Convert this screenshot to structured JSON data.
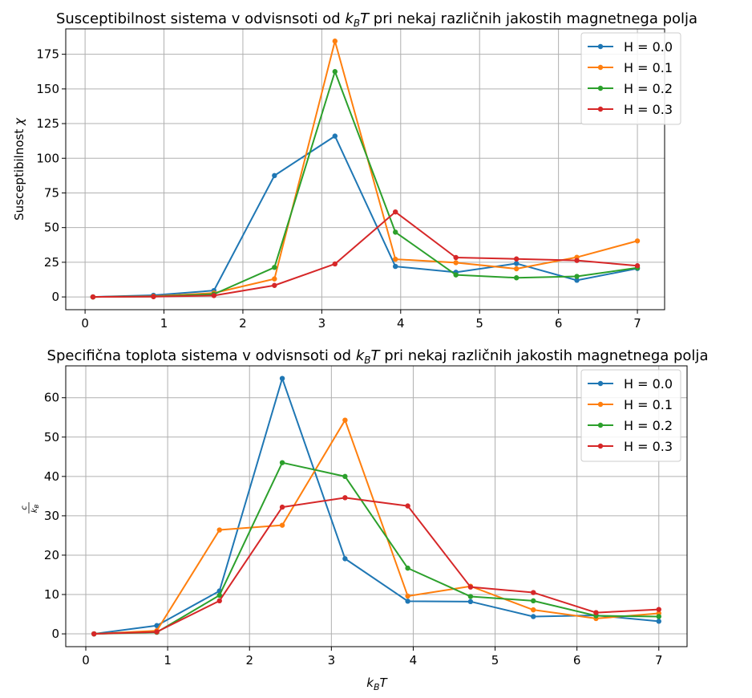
{
  "chart_data": [
    {
      "type": "line",
      "title": "Susceptibilnost sistema v odvisnsoti od k_BT pri nekaj različnih jakostih magnetnega polja",
      "title_parts": [
        "Susceptibilnost sistema v odvisnsoti od ",
        "k",
        "B",
        "T",
        " pri nekaj različnih jakostih magnetnega polja"
      ],
      "ylabel": "Susceptibilnost χ",
      "ylabel_parts": [
        "Susceptibilnost ",
        "χ"
      ],
      "xlabel": "",
      "x": [
        0.1,
        0.867,
        1.633,
        2.4,
        3.167,
        3.933,
        4.7,
        5.467,
        6.233,
        7.0
      ],
      "xlim": [
        -0.245,
        7.345
      ],
      "ylim": [
        -9.2,
        193.3
      ],
      "xticks": [
        0,
        1,
        2,
        3,
        4,
        5,
        6,
        7
      ],
      "yticks": [
        0,
        25,
        50,
        75,
        100,
        125,
        150,
        175
      ],
      "grid": true,
      "legend_position": "top-right",
      "series": [
        {
          "name": "H = 0.0",
          "color": "#1f77b4",
          "values": [
            0.0,
            1.2,
            4.6,
            87.5,
            116.0,
            22.0,
            17.8,
            24.1,
            12.0,
            20.5
          ]
        },
        {
          "name": "H = 0.1",
          "color": "#ff7f0e",
          "values": [
            0.0,
            0.5,
            2.8,
            13.0,
            184.5,
            27.2,
            24.7,
            20.3,
            28.6,
            40.4
          ]
        },
        {
          "name": "H = 0.2",
          "color": "#2ca02c",
          "values": [
            0.0,
            0.3,
            2.0,
            21.3,
            162.5,
            46.7,
            15.9,
            13.8,
            14.8,
            21.0
          ]
        },
        {
          "name": "H = 0.3",
          "color": "#d62728",
          "values": [
            0.0,
            0.2,
            1.0,
            8.3,
            23.8,
            61.3,
            28.4,
            27.4,
            26.3,
            22.5
          ]
        }
      ]
    },
    {
      "type": "line",
      "title": "Specifična toplota sistema v odvisnsoti od k_BT pri nekaj različnih jakostih magnetnega polja",
      "title_parts": [
        "Specifična toplota sistema v odvisnsoti od ",
        "k",
        "B",
        "T",
        " pri nekaj različnih jakostih magnetnega polja"
      ],
      "ylabel": "c/k_B",
      "ylabel_parts": [
        "c",
        "k",
        "B"
      ],
      "xlabel": "k_BT",
      "xlabel_parts": [
        "k",
        "B",
        "T"
      ],
      "x": [
        0.1,
        0.867,
        1.633,
        2.4,
        3.167,
        3.933,
        4.7,
        5.467,
        6.233,
        7.0
      ],
      "xlim": [
        -0.245,
        7.345
      ],
      "ylim": [
        -3.25,
        68.1
      ],
      "xticks": [
        0,
        1,
        2,
        3,
        4,
        5,
        6,
        7
      ],
      "yticks": [
        0,
        10,
        20,
        30,
        40,
        50,
        60
      ],
      "grid": true,
      "legend_position": "top-right",
      "series": [
        {
          "name": "H = 0.0",
          "color": "#1f77b4",
          "values": [
            0.0,
            2.1,
            10.9,
            64.9,
            19.1,
            8.3,
            8.2,
            4.4,
            4.7,
            3.2
          ]
        },
        {
          "name": "H = 0.1",
          "color": "#ff7f0e",
          "values": [
            0.0,
            0.8,
            26.4,
            27.6,
            54.3,
            9.6,
            12.1,
            6.1,
            3.9,
            5.2
          ]
        },
        {
          "name": "H = 0.2",
          "color": "#2ca02c",
          "values": [
            0.0,
            0.4,
            9.8,
            43.5,
            40.0,
            16.7,
            9.5,
            8.4,
            4.6,
            4.4
          ]
        },
        {
          "name": "H = 0.3",
          "color": "#d62728",
          "values": [
            0.0,
            0.5,
            8.4,
            32.2,
            34.6,
            32.5,
            11.9,
            10.5,
            5.4,
            6.2
          ]
        }
      ]
    }
  ]
}
